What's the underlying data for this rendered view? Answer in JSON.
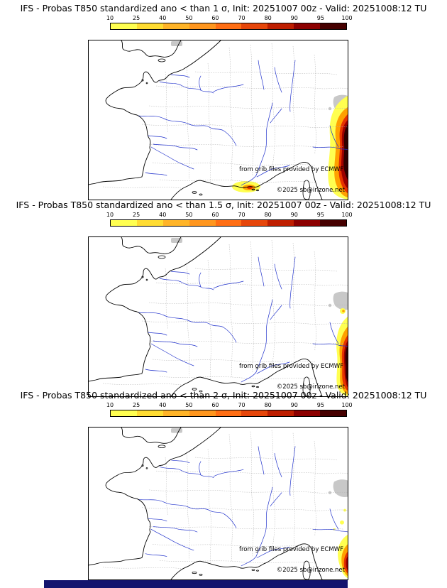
{
  "panels": [
    {
      "title": "IFS - Probas T850  standardized ano < than 1 σ, Init: 20251007 00z - Valid: 20251008:12 TU"
    },
    {
      "title": "IFS - Probas T850  standardized ano < than 1.5 σ, Init: 20251007 00z - Valid: 20251008:12 TU"
    },
    {
      "title": "IFS - Probas T850  standardized ano < than 2 σ, Init: 20251007 00z - Valid: 20251008:12 TU"
    }
  ],
  "colorbar": {
    "ticks": [
      "10",
      "25",
      "40",
      "50",
      "60",
      "70",
      "80",
      "90",
      "95",
      "100"
    ],
    "colors": [
      "#ffff50",
      "#ffdc32",
      "#ffb428",
      "#ff961e",
      "#ff6e14",
      "#e6460a",
      "#be1e00",
      "#8c0000",
      "#460000"
    ]
  },
  "credits": {
    "provider": "from grib files provided by ECMWF",
    "copyright": "©2025 sb@irizone.net"
  },
  "colors": {
    "river": "#2233cc",
    "department_border": "#b3b3b3",
    "coast": "#000000",
    "footer_bar": "#14146e",
    "blob_levels": [
      "#ffff50",
      "#ffa000",
      "#e63200",
      "#9b0000",
      "#300000"
    ]
  }
}
